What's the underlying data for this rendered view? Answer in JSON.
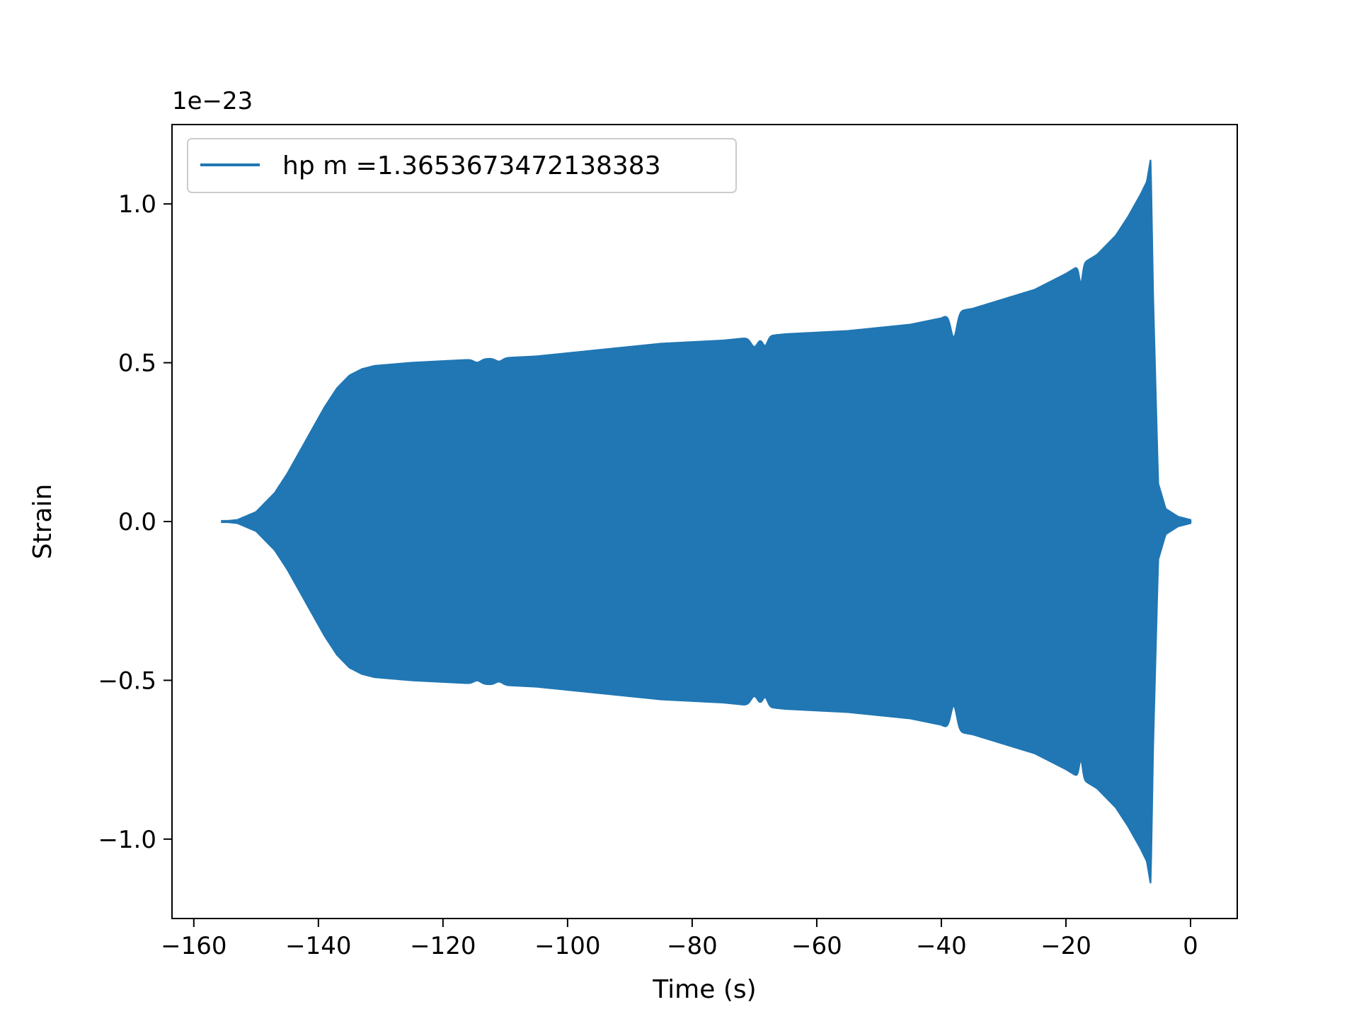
{
  "chart_data": {
    "type": "line",
    "title": "",
    "xlabel": "Time (s)",
    "ylabel": "Strain",
    "offset_text": "1e−23",
    "xlim": [
      -163.5,
      7.5
    ],
    "ylim": [
      -1.25,
      1.25
    ],
    "x_ticks": [
      -160,
      -140,
      -120,
      -100,
      -80,
      -60,
      -40,
      -20,
      0
    ],
    "x_tick_labels": [
      "−160",
      "−140",
      "−120",
      "−100",
      "−80",
      "−60",
      "−40",
      "−20",
      "0"
    ],
    "y_ticks": [
      -1.0,
      -0.5,
      0.0,
      0.5,
      1.0
    ],
    "y_tick_labels": [
      "−1.0",
      "−0.5",
      "0.0",
      "0.5",
      "1.0"
    ],
    "grid": false,
    "legend_position": "upper left",
    "series": [
      {
        "name": "hp m =1.3653673472138383",
        "color": "#2077b4",
        "style": "dense oscillation (filled envelope)",
        "envelope_upper": {
          "x": [
            -155.5,
            -153,
            -150,
            -147,
            -145,
            -143,
            -141,
            -139,
            -137,
            -135,
            -133,
            -131,
            -125,
            -115,
            -105,
            -95,
            -85,
            -75,
            -65,
            -55,
            -45,
            -40,
            -38,
            -35,
            -30,
            -25,
            -20,
            -15,
            -12,
            -10,
            -8,
            -7,
            -6.4,
            -6.0,
            -5.2,
            -4.0,
            -2.0,
            0.0
          ],
          "y": [
            0.0,
            0.005,
            0.03,
            0.09,
            0.15,
            0.22,
            0.29,
            0.36,
            0.42,
            0.46,
            0.48,
            0.49,
            0.5,
            0.51,
            0.52,
            0.54,
            0.56,
            0.57,
            0.59,
            0.6,
            0.62,
            0.64,
            0.66,
            0.67,
            0.7,
            0.73,
            0.78,
            0.84,
            0.9,
            0.96,
            1.03,
            1.07,
            1.14,
            0.7,
            0.12,
            0.04,
            0.015,
            0.005
          ]
        },
        "envelope_lower": {
          "x": [
            -155.5,
            -153,
            -150,
            -147,
            -145,
            -143,
            -141,
            -139,
            -137,
            -135,
            -133,
            -131,
            -125,
            -115,
            -105,
            -95,
            -85,
            -75,
            -65,
            -55,
            -45,
            -40,
            -38,
            -35,
            -30,
            -25,
            -20,
            -15,
            -12,
            -10,
            -8,
            -7,
            -6.4,
            -6.0,
            -5.2,
            -4.0,
            -2.0,
            0.0
          ],
          "y": [
            0.0,
            -0.005,
            -0.03,
            -0.09,
            -0.15,
            -0.22,
            -0.29,
            -0.36,
            -0.42,
            -0.46,
            -0.48,
            -0.49,
            -0.5,
            -0.51,
            -0.52,
            -0.54,
            -0.56,
            -0.57,
            -0.59,
            -0.6,
            -0.62,
            -0.64,
            -0.66,
            -0.67,
            -0.7,
            -0.73,
            -0.78,
            -0.84,
            -0.9,
            -0.96,
            -1.03,
            -1.07,
            -1.14,
            -0.7,
            -0.12,
            -0.04,
            -0.015,
            -0.005
          ]
        },
        "notches": [
          {
            "x": -38.0,
            "depth": 0.08,
            "width": 0.7
          },
          {
            "x": -17.6,
            "depth": 0.06,
            "width": 0.4
          },
          {
            "x": -70.0,
            "depth": 0.03,
            "width": 0.8
          },
          {
            "x": -68.3,
            "depth": 0.03,
            "width": 0.6
          },
          {
            "x": -114.5,
            "depth": 0.01,
            "width": 0.8
          },
          {
            "x": -111.0,
            "depth": 0.01,
            "width": 0.8
          }
        ]
      }
    ]
  }
}
